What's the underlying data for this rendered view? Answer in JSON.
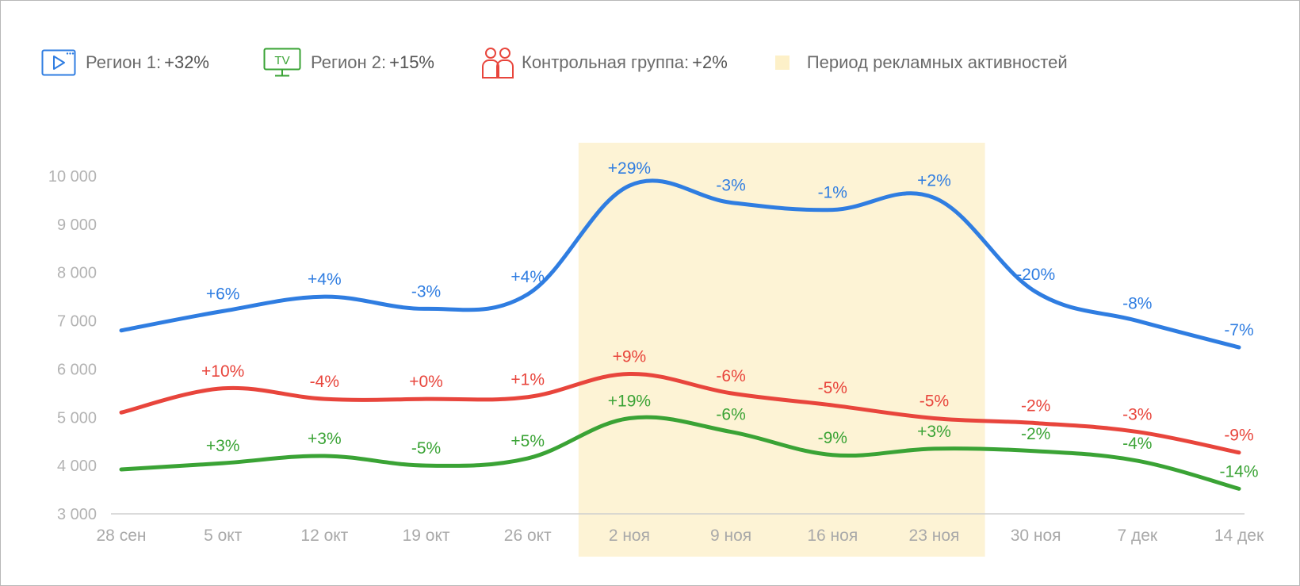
{
  "legend": {
    "items": [
      {
        "label": "Регион 1:",
        "value": "+32%",
        "color": "#2f7de1",
        "icon": "video-player-icon"
      },
      {
        "label": "Регион 2:",
        "value": "+15%",
        "color": "#3aa335",
        "icon": "tv-icon",
        "icon_text": "TV"
      },
      {
        "label": "Контрольная группа:",
        "value": "+2%",
        "color": "#e8453c",
        "icon": "people-group-icon"
      },
      {
        "label": "Период рекламных активностей",
        "color": "#fdf3d5",
        "icon": "period-swatch-icon"
      }
    ]
  },
  "chart_data": {
    "type": "line",
    "categories": [
      "28 сен",
      "5 окт",
      "12 окт",
      "19 окт",
      "26 окт",
      "2 ноя",
      "9 ноя",
      "16 ноя",
      "23 ноя",
      "30 ноя",
      "7 дек",
      "14 дек"
    ],
    "y_ticks": [
      3000,
      4000,
      5000,
      6000,
      7000,
      8000,
      9000,
      10000
    ],
    "y_tick_labels": [
      "3 000",
      "4 000",
      "5 000",
      "6 000",
      "7 000",
      "8 000",
      "9 000",
      "10 000"
    ],
    "ylim": [
      3000,
      10000
    ],
    "highlight_period": {
      "from": "2 ноя",
      "to": "23 ноя",
      "label": "Период рекламных активностей"
    },
    "series": [
      {
        "name": "Регион 1",
        "color": "#2f7de1",
        "values": [
          6800,
          7200,
          7500,
          7250,
          7550,
          9800,
          9450,
          9300,
          9550,
          7600,
          7000,
          6450
        ],
        "labels": [
          "",
          "+6%",
          "+4%",
          "-3%",
          "+4%",
          "+29%",
          "-3%",
          "-1%",
          "+2%",
          "-20%",
          "-8%",
          "-7%"
        ]
      },
      {
        "name": "Контрольная группа",
        "color": "#e8453c",
        "values": [
          5100,
          5600,
          5380,
          5380,
          5420,
          5900,
          5500,
          5250,
          4980,
          4880,
          4700,
          4270
        ],
        "labels": [
          "",
          "+10%",
          "-4%",
          "+0%",
          "+1%",
          "+9%",
          "-6%",
          "-5%",
          "-5%",
          "-2%",
          "-3%",
          "-9%"
        ]
      },
      {
        "name": "Регион 2",
        "color": "#3aa335",
        "values": [
          3920,
          4050,
          4200,
          4000,
          4150,
          4980,
          4700,
          4220,
          4350,
          4300,
          4100,
          3520
        ],
        "labels": [
          "",
          "+3%",
          "+3%",
          "-5%",
          "+5%",
          "+19%",
          "-6%",
          "-9%",
          "+3%",
          "-2%",
          "-4%",
          "-14%"
        ]
      }
    ]
  }
}
